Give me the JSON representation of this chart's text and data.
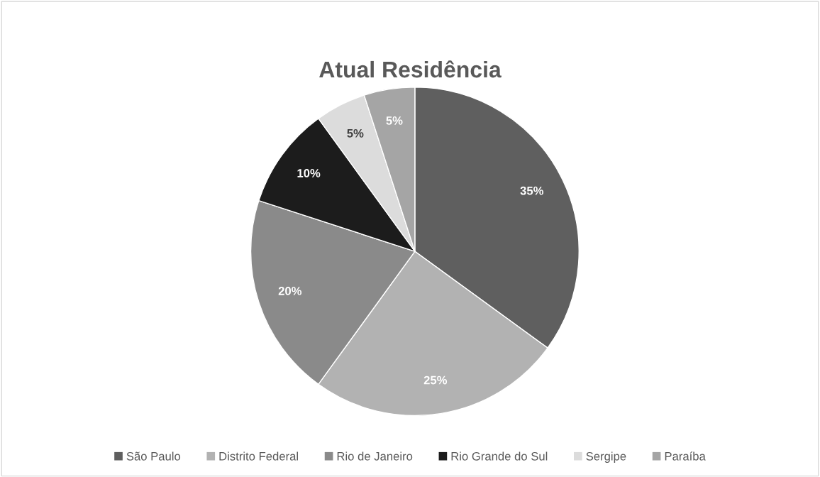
{
  "chart_data": {
    "type": "pie",
    "title": "Atual Residência",
    "categories": [
      "São Paulo",
      "Distrito Federal",
      "Rio de Janeiro",
      "Rio Grande do Sul",
      "Sergipe",
      "Paraíba"
    ],
    "values": [
      35,
      25,
      20,
      10,
      5,
      5
    ],
    "value_labels": [
      "35%",
      "25%",
      "20%",
      "10%",
      "5%",
      "5%"
    ],
    "colors": [
      "#5f5f5f",
      "#b2b2b2",
      "#8a8a8a",
      "#1c1c1c",
      "#dcdcdc",
      "#a5a5a5"
    ],
    "legend": "bottom"
  }
}
